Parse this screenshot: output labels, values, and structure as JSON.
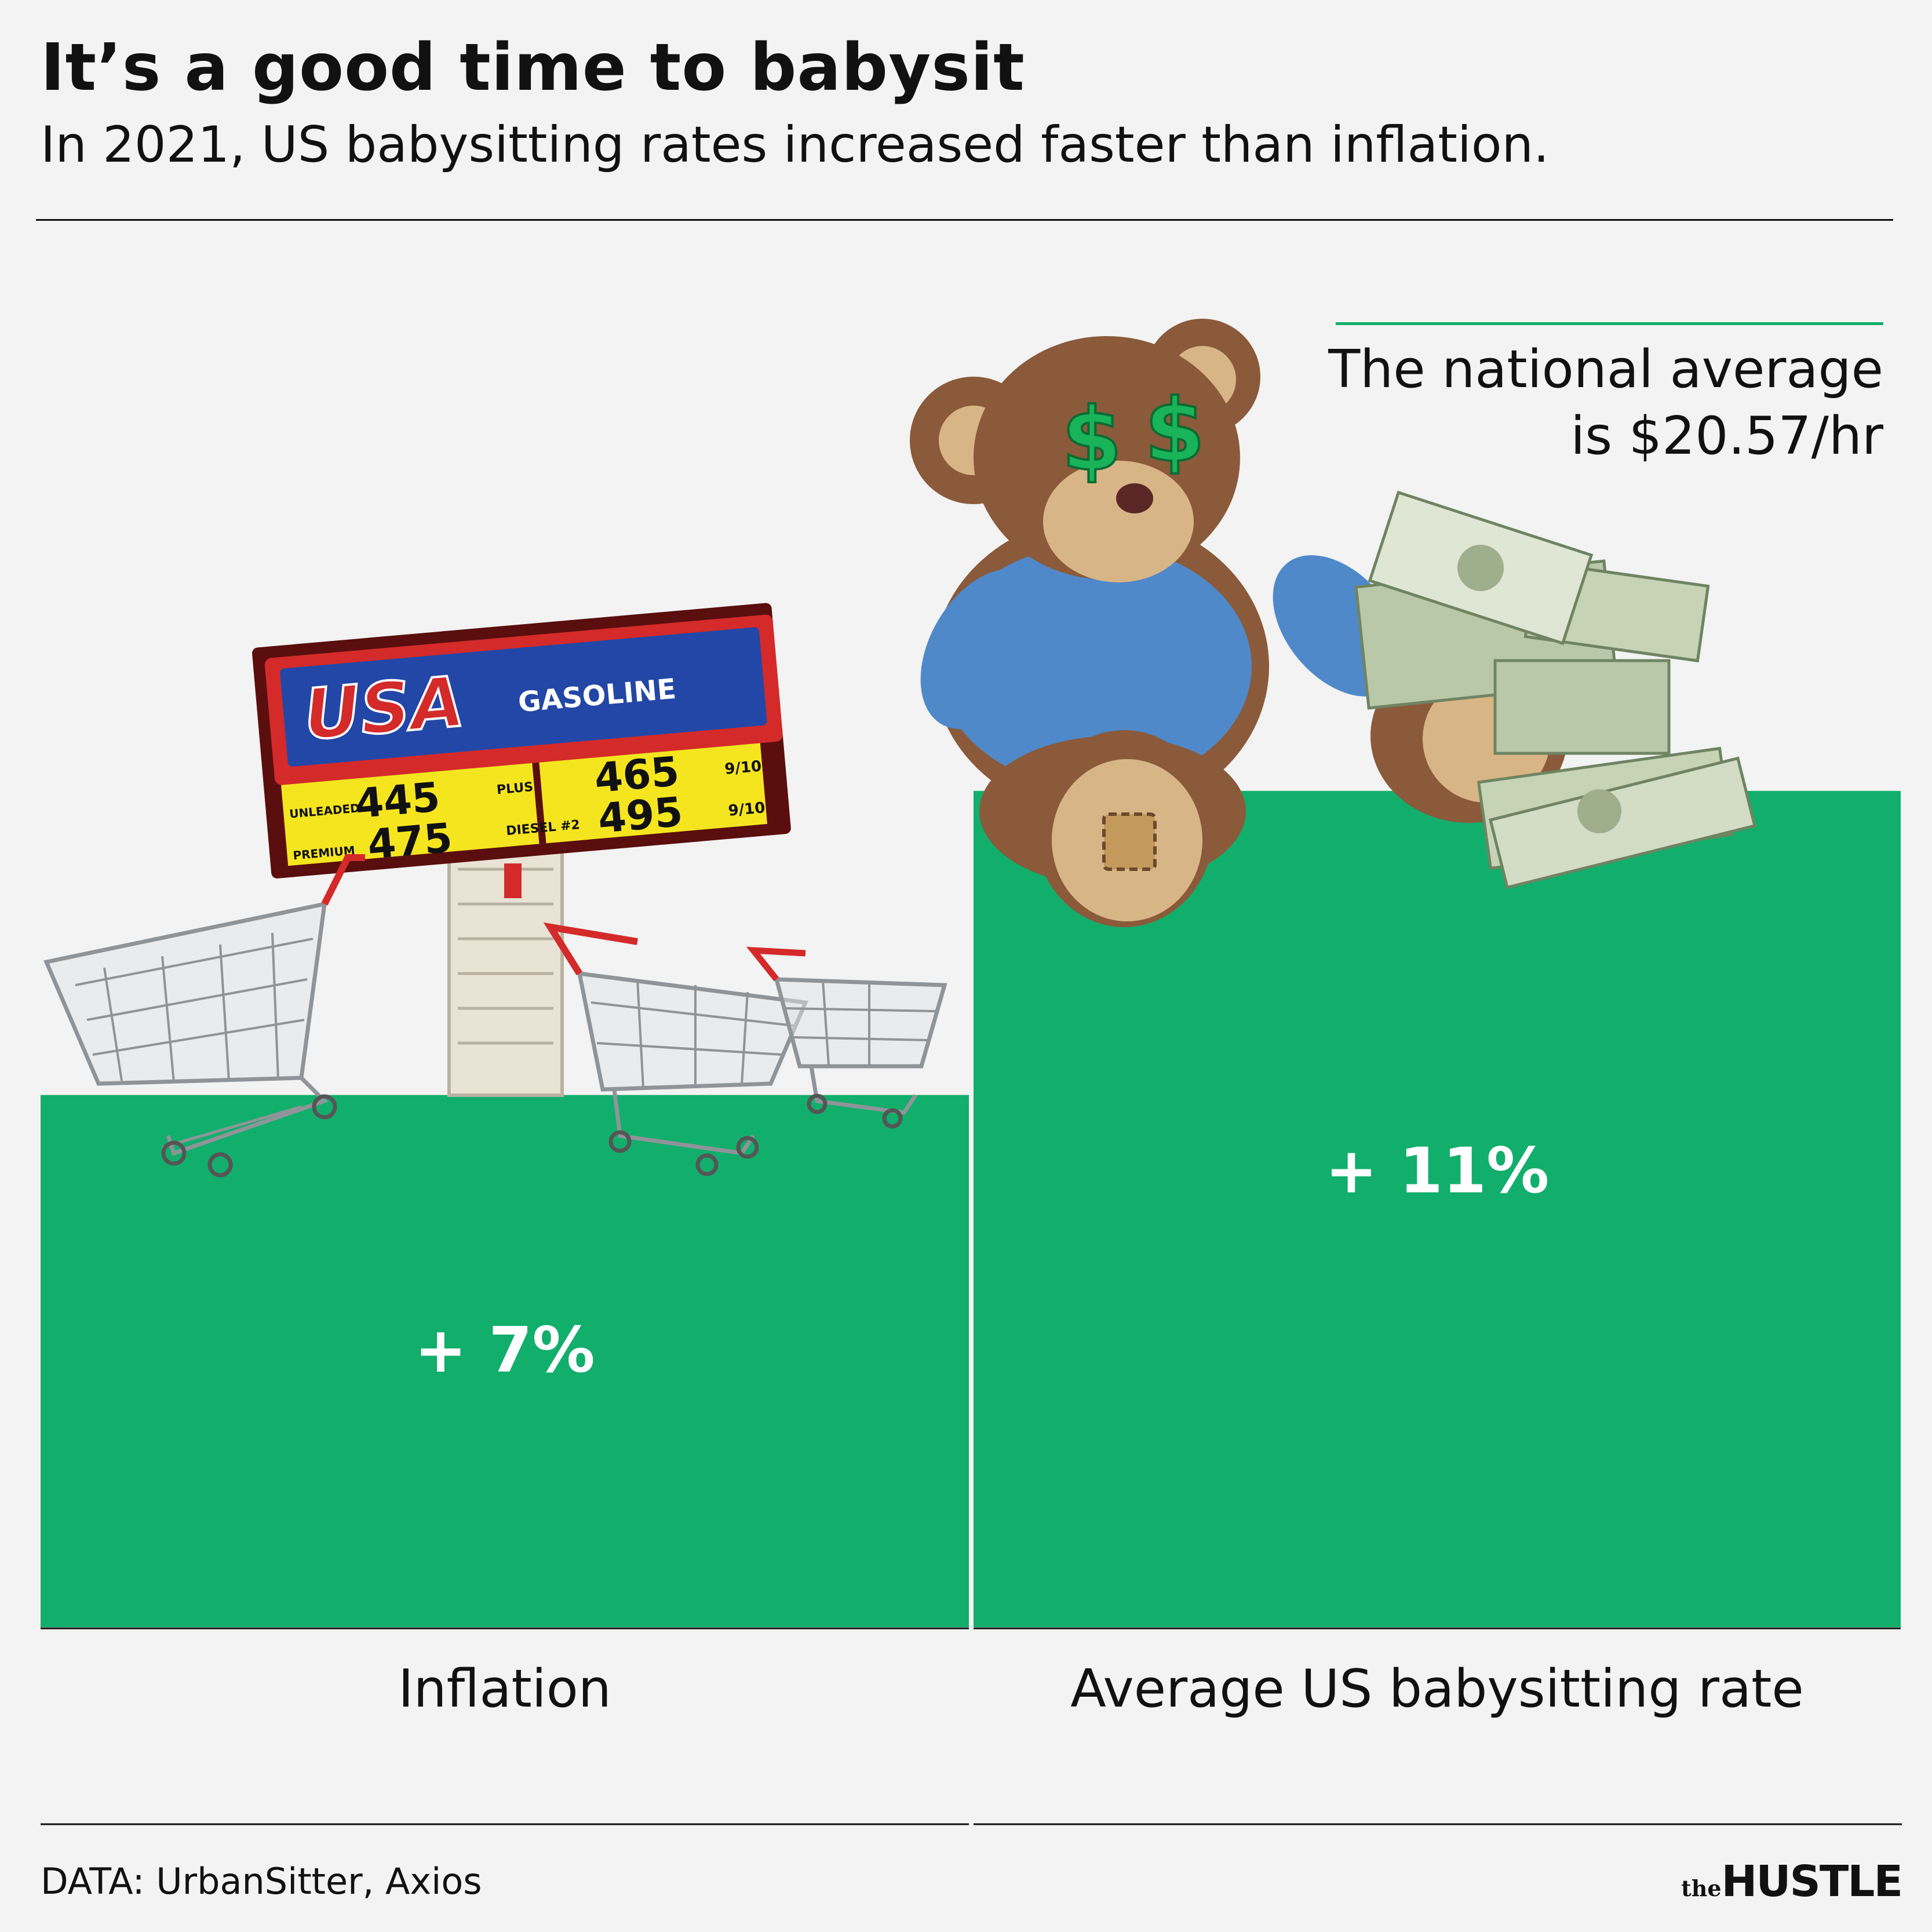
{
  "header": {
    "title": "It’s a good time to babysit",
    "subtitle": "In 2021, US babysitting rates increased faster than inflation."
  },
  "annotation": {
    "line1": "The national average",
    "line2": "is $20.57/hr"
  },
  "gas_sign": {
    "brand": "USA",
    "word": "GASOLINE",
    "grades": [
      "UNLEADED",
      "PLUS",
      "PREMIUM",
      "DIESEL #2"
    ],
    "prices": [
      "445",
      "465",
      "475",
      "495"
    ],
    "fraction": "9/10"
  },
  "footer": {
    "source": "DATA: UrbanSitter, Axios",
    "logo_the": "the",
    "logo_name": "HUSTLE"
  },
  "colors": {
    "bar": "#12ae6c",
    "background": "#f2f3f2",
    "text": "#111111"
  },
  "chart_data": {
    "type": "bar",
    "title": "It’s a good time to babysit",
    "subtitle": "In 2021, US babysitting rates increased faster than inflation.",
    "categories": [
      "Inflation",
      "Average US babysitting rate"
    ],
    "values": [
      7,
      11
    ],
    "value_labels": [
      "+ 7%",
      "+ 11%"
    ],
    "unit": "%",
    "ylim": [
      0,
      15
    ],
    "grid": false,
    "legend": "none",
    "annotation": "The national average is $20.57/hr"
  }
}
